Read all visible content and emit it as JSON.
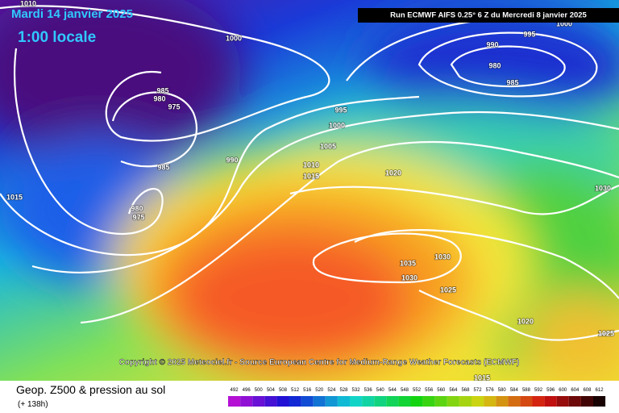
{
  "header": {
    "date": "Mardi 14 janvier 2025",
    "time": "1:00 locale",
    "run": "Run ECMWF AIFS 0.25° 6 Z du Mercredi 8 janvier 2025"
  },
  "isobar_labels": [
    "1010",
    "1000",
    "985",
    "980",
    "975",
    "985",
    "990",
    "995",
    "1000",
    "1005",
    "1010",
    "1015",
    "1020",
    "1015",
    "980",
    "975",
    "995",
    "990",
    "980",
    "985",
    "1030",
    "1035",
    "1030",
    "1030",
    "1025",
    "1020",
    "1025",
    "1015",
    "1000"
  ],
  "footer": {
    "copyright": "Copyright © 2025 Meteociel.fr - Source European Centre for Medium-Range Weather Forecasts (ECMWF)",
    "product": "Geop. Z500 & pression au sol",
    "lead": "(+ 138h)"
  },
  "legend": {
    "labels": [
      "492",
      "496",
      "500",
      "504",
      "508",
      "512",
      "516",
      "520",
      "524",
      "528",
      "532",
      "536",
      "540",
      "544",
      "548",
      "552",
      "556",
      "560",
      "564",
      "568",
      "572",
      "576",
      "580",
      "584",
      "588",
      "592",
      "596",
      "600",
      "604",
      "608",
      "612"
    ]
  }
}
